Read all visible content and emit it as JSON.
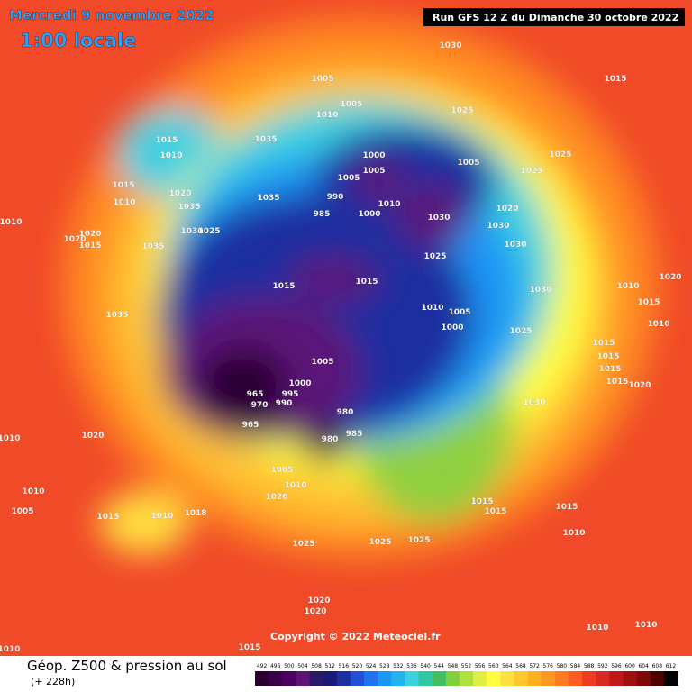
{
  "header": {
    "date": "Mercredi 9 novembre 2022",
    "time": "1:00 locale",
    "run": "Run GFS 12 Z du Dimanche 30 octobre 2022"
  },
  "copyright": "Copyright © 2022 Meteociel.fr",
  "footer": {
    "title": "Géop. Z500 & pression au sol",
    "lead": "(+ 228h)"
  },
  "legend": {
    "values": [
      492,
      496,
      500,
      504,
      508,
      512,
      516,
      520,
      524,
      528,
      532,
      536,
      540,
      544,
      548,
      552,
      556,
      560,
      564,
      568,
      572,
      576,
      580,
      584,
      588,
      592,
      596,
      600,
      604,
      608,
      612
    ],
    "colors": [
      "#2a0030",
      "#3a0048",
      "#4c0060",
      "#5c1478",
      "#2a1a6a",
      "#1a1a7a",
      "#1f2fa0",
      "#1e50d8",
      "#1f73f0",
      "#1e96f5",
      "#20b4f0",
      "#3cd0e0",
      "#30c8a0",
      "#40c060",
      "#80d040",
      "#b0e040",
      "#e0f040",
      "#ffff40",
      "#ffe040",
      "#ffc830",
      "#ffb020",
      "#ff9820",
      "#ff7a20",
      "#ff5a20",
      "#f03a20",
      "#d82820",
      "#c01818",
      "#a01010",
      "#800808",
      "#500000",
      "#000000"
    ]
  },
  "isobar_labels": [
    1030,
    1015,
    1005,
    1010,
    1005,
    1025,
    1015,
    1010,
    1035,
    1015,
    1010,
    1020,
    1035,
    1035,
    1030,
    1025,
    1035,
    1010,
    1020,
    1015,
    1020,
    1000,
    1005,
    1005,
    990,
    985,
    1000,
    1010,
    1005,
    1025,
    1025,
    1020,
    1030,
    1030,
    1030,
    1025,
    1015,
    1015,
    1030,
    1010,
    1020,
    1015,
    1010,
    1005,
    1000,
    1025,
    1010,
    1015,
    1015,
    1015,
    1015,
    1020,
    1035,
    1005,
    1000,
    965,
    970,
    995,
    990,
    965,
    980,
    980,
    985,
    1030,
    1020,
    1010,
    1005,
    1010,
    1020,
    1010,
    1005,
    1015,
    1010,
    1018,
    1025,
    1025,
    1025,
    1015,
    1015,
    1015,
    1010,
    1020,
    1020,
    1010,
    1010,
    1015,
    1010
  ]
}
